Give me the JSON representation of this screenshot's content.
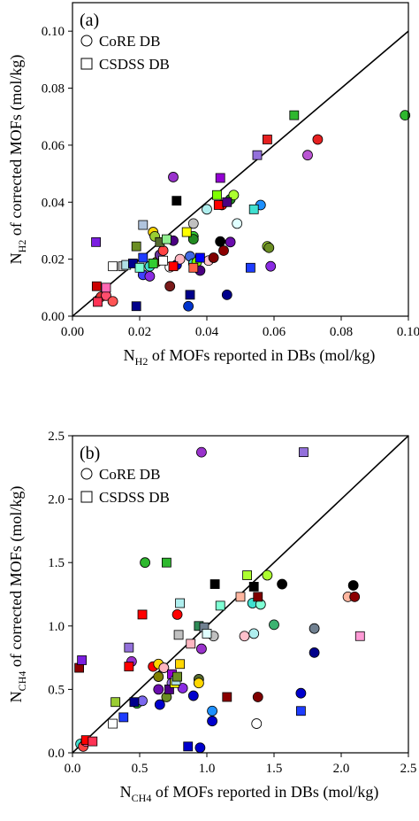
{
  "chart_data": [
    {
      "type": "scatter",
      "panel_label": "(a)",
      "xlabel": {
        "main": "N",
        "sub": "H2",
        "rest": " of MOFs reported in DBs (mol/kg)"
      },
      "ylabel": {
        "main": "N",
        "sub": "H2",
        "rest": " of corrected MOFs (mol/kg)"
      },
      "xlim": [
        0,
        0.1
      ],
      "ylim": [
        0,
        0.11
      ],
      "xticks": [
        "0.00",
        "0.02",
        "0.04",
        "0.06",
        "0.08",
        "0.10"
      ],
      "xtick_values": [
        0,
        0.02,
        0.04,
        0.06,
        0.08,
        0.1
      ],
      "yticks": [
        "0.00",
        "0.02",
        "0.04",
        "0.06",
        "0.08",
        "0.10"
      ],
      "ytick_values": [
        0,
        0.02,
        0.04,
        0.06,
        0.08,
        0.1
      ],
      "diagonal": [
        [
          0,
          0
        ],
        [
          0.11,
          0.11
        ]
      ],
      "legend": [
        {
          "label": "CoRE DB",
          "marker": "circle"
        },
        {
          "label": "CSDSS DB",
          "marker": "square"
        }
      ],
      "series": [
        {
          "name": "CoRE DB",
          "marker": "circle",
          "points": [
            {
              "x": 0.0085,
              "y": 0.0068,
              "color": "#e03333"
            },
            {
              "x": 0.01,
              "y": 0.0072,
              "color": "#ff4d6d"
            },
            {
              "x": 0.012,
              "y": 0.0052,
              "color": "#ff5555"
            },
            {
              "x": 0.021,
              "y": 0.0145,
              "color": "#4040ff"
            },
            {
              "x": 0.023,
              "y": 0.014,
              "color": "#8a2be2"
            },
            {
              "x": 0.023,
              "y": 0.0175,
              "color": "#40e0d0"
            },
            {
              "x": 0.024,
              "y": 0.0295,
              "color": "#ffd700"
            },
            {
              "x": 0.0245,
              "y": 0.028,
              "color": "#9acd32"
            },
            {
              "x": 0.025,
              "y": 0.019,
              "color": "#808000"
            },
            {
              "x": 0.026,
              "y": 0.0215,
              "color": "#663399"
            },
            {
              "x": 0.027,
              "y": 0.023,
              "color": "#ff4444"
            },
            {
              "x": 0.029,
              "y": 0.0172,
              "color": "#ffffff"
            },
            {
              "x": 0.029,
              "y": 0.0105,
              "color": "#7a1a1a"
            },
            {
              "x": 0.03,
              "y": 0.0265,
              "color": "#4b0082"
            },
            {
              "x": 0.03,
              "y": 0.0488,
              "color": "#9932cc"
            },
            {
              "x": 0.031,
              "y": 0.018,
              "color": "#0000cd"
            },
            {
              "x": 0.032,
              "y": 0.02,
              "color": "#ffb6c1"
            },
            {
              "x": 0.0345,
              "y": 0.0035,
              "color": "#0033cc"
            },
            {
              "x": 0.035,
              "y": 0.021,
              "color": "#4169e1"
            },
            {
              "x": 0.036,
              "y": 0.028,
              "color": "#32cd32"
            },
            {
              "x": 0.036,
              "y": 0.027,
              "color": "#228b22"
            },
            {
              "x": 0.036,
              "y": 0.0325,
              "color": "#c0c0c0"
            },
            {
              "x": 0.036,
              "y": 0.0185,
              "color": "#40e0d0"
            },
            {
              "x": 0.037,
              "y": 0.019,
              "color": "#7fff00"
            },
            {
              "x": 0.038,
              "y": 0.016,
              "color": "#4b0082"
            },
            {
              "x": 0.04,
              "y": 0.0375,
              "color": "#afeeee"
            },
            {
              "x": 0.0405,
              "y": 0.0195,
              "color": "#ffc0cb"
            },
            {
              "x": 0.042,
              "y": 0.0205,
              "color": "#800000"
            },
            {
              "x": 0.044,
              "y": 0.0262,
              "color": "#000000"
            },
            {
              "x": 0.0445,
              "y": 0.039,
              "color": "#ff0000"
            },
            {
              "x": 0.045,
              "y": 0.023,
              "color": "#8b0000"
            },
            {
              "x": 0.046,
              "y": 0.0075,
              "color": "#00008b"
            },
            {
              "x": 0.047,
              "y": 0.026,
              "color": "#6a0dad"
            },
            {
              "x": 0.047,
              "y": 0.041,
              "color": "#228b22"
            },
            {
              "x": 0.048,
              "y": 0.0425,
              "color": "#adff2f"
            },
            {
              "x": 0.049,
              "y": 0.0325,
              "color": "#e0ffff"
            },
            {
              "x": 0.056,
              "y": 0.039,
              "color": "#1e90ff"
            },
            {
              "x": 0.058,
              "y": 0.0245,
              "color": "#9acd32"
            },
            {
              "x": 0.0585,
              "y": 0.024,
              "color": "#6b8e23"
            },
            {
              "x": 0.059,
              "y": 0.0175,
              "color": "#8a2be2"
            },
            {
              "x": 0.07,
              "y": 0.0565,
              "color": "#ba55d3"
            },
            {
              "x": 0.073,
              "y": 0.062,
              "color": "#e62020"
            },
            {
              "x": 0.099,
              "y": 0.0705,
              "color": "#2eb82e"
            }
          ]
        },
        {
          "name": "CSDSS DB",
          "marker": "square",
          "points": [
            {
              "x": 0.007,
              "y": 0.026,
              "color": "#7b1fe0"
            },
            {
              "x": 0.0072,
              "y": 0.0105,
              "color": "#cc0000"
            },
            {
              "x": 0.0075,
              "y": 0.005,
              "color": "#ff3355"
            },
            {
              "x": 0.01,
              "y": 0.01,
              "color": "#ff69b4"
            },
            {
              "x": 0.012,
              "y": 0.0175,
              "color": "#ffffff"
            },
            {
              "x": 0.015,
              "y": 0.0175,
              "color": "#c0c0c0"
            },
            {
              "x": 0.016,
              "y": 0.018,
              "color": "#b0e0e6"
            },
            {
              "x": 0.018,
              "y": 0.0185,
              "color": "#00008b"
            },
            {
              "x": 0.019,
              "y": 0.0245,
              "color": "#6b8e23"
            },
            {
              "x": 0.019,
              "y": 0.0035,
              "color": "#00008b"
            },
            {
              "x": 0.02,
              "y": 0.017,
              "color": "#7fffd4"
            },
            {
              "x": 0.021,
              "y": 0.032,
              "color": "#b0c4de"
            },
            {
              "x": 0.021,
              "y": 0.0205,
              "color": "#1e3cff"
            },
            {
              "x": 0.024,
              "y": 0.0185,
              "color": "#32cd32"
            },
            {
              "x": 0.026,
              "y": 0.026,
              "color": "#556b2f"
            },
            {
              "x": 0.027,
              "y": 0.0195,
              "color": "#ffffff"
            },
            {
              "x": 0.028,
              "y": 0.027,
              "color": "#90ee90"
            },
            {
              "x": 0.03,
              "y": 0.0175,
              "color": "#ff0000"
            },
            {
              "x": 0.031,
              "y": 0.0405,
              "color": "#000000"
            },
            {
              "x": 0.034,
              "y": 0.0295,
              "color": "#ffff00"
            },
            {
              "x": 0.035,
              "y": 0.0075,
              "color": "#00008b"
            },
            {
              "x": 0.036,
              "y": 0.017,
              "color": "#ff6347"
            },
            {
              "x": 0.038,
              "y": 0.0205,
              "color": "#0000ff"
            },
            {
              "x": 0.043,
              "y": 0.0425,
              "color": "#7fff00"
            },
            {
              "x": 0.0435,
              "y": 0.039,
              "color": "#ff0000"
            },
            {
              "x": 0.044,
              "y": 0.0485,
              "color": "#9400d3"
            },
            {
              "x": 0.046,
              "y": 0.04,
              "color": "#4b0082"
            },
            {
              "x": 0.053,
              "y": 0.017,
              "color": "#1e3cff"
            },
            {
              "x": 0.054,
              "y": 0.0375,
              "color": "#40e0d0"
            },
            {
              "x": 0.055,
              "y": 0.0565,
              "color": "#9370db"
            },
            {
              "x": 0.058,
              "y": 0.062,
              "color": "#e62020"
            },
            {
              "x": 0.066,
              "y": 0.0705,
              "color": "#2eb82e"
            }
          ]
        }
      ]
    },
    {
      "type": "scatter",
      "panel_label": "(b)",
      "xlabel": {
        "main": "N",
        "sub": "CH4",
        "rest": " of MOFs reported in DBs (mol/kg)"
      },
      "ylabel": {
        "main": "N",
        "sub": "CH4",
        "rest": " of corrected MOFs (mol/kg)"
      },
      "xlim": [
        0,
        2.5
      ],
      "ylim": [
        0,
        2.5
      ],
      "xticks": [
        "0.0",
        "0.5",
        "1.0",
        "1.5",
        "2.0",
        "2.5"
      ],
      "xtick_values": [
        0,
        0.5,
        1.0,
        1.5,
        2.0,
        2.5
      ],
      "yticks": [
        "0.0",
        "0.5",
        "1.0",
        "1.5",
        "2.0",
        "2.5"
      ],
      "ytick_values": [
        0,
        0.5,
        1.0,
        1.5,
        2.0,
        2.5
      ],
      "diagonal": [
        [
          0,
          0
        ],
        [
          2.5,
          2.5
        ]
      ],
      "legend": [
        {
          "label": "CoRE DB",
          "marker": "circle"
        },
        {
          "label": "CSDSS DB",
          "marker": "square"
        }
      ],
      "series": [
        {
          "name": "CoRE DB",
          "marker": "circle",
          "points": [
            {
              "x": 0.06,
              "y": 0.07,
              "color": "#40e0d0"
            },
            {
              "x": 0.08,
              "y": 0.05,
              "color": "#ff4444"
            },
            {
              "x": 0.1,
              "y": 0.09,
              "color": "#ff69b4"
            },
            {
              "x": 0.44,
              "y": 0.72,
              "color": "#9932cc"
            },
            {
              "x": 0.48,
              "y": 0.39,
              "color": "#32cd32"
            },
            {
              "x": 0.52,
              "y": 0.41,
              "color": "#7b68ee"
            },
            {
              "x": 0.54,
              "y": 1.5,
              "color": "#2eb82e"
            },
            {
              "x": 0.6,
              "y": 0.68,
              "color": "#ff0000"
            },
            {
              "x": 0.64,
              "y": 0.7,
              "color": "#ffd700"
            },
            {
              "x": 0.64,
              "y": 0.6,
              "color": "#808000"
            },
            {
              "x": 0.64,
              "y": 0.5,
              "color": "#6a0dad"
            },
            {
              "x": 0.65,
              "y": 0.38,
              "color": "#0000cd"
            },
            {
              "x": 0.68,
              "y": 0.67,
              "color": "#ffb6c1"
            },
            {
              "x": 0.7,
              "y": 0.44,
              "color": "#6b8e23"
            },
            {
              "x": 0.74,
              "y": 0.55,
              "color": "#9370db"
            },
            {
              "x": 0.78,
              "y": 1.09,
              "color": "#ff0000"
            },
            {
              "x": 0.82,
              "y": 0.51,
              "color": "#8a2be2"
            },
            {
              "x": 0.9,
              "y": 0.45,
              "color": "#0000cd"
            },
            {
              "x": 0.94,
              "y": 0.58,
              "color": "#556b2f"
            },
            {
              "x": 0.94,
              "y": 0.55,
              "color": "#ffd700"
            },
            {
              "x": 0.95,
              "y": 0.04,
              "color": "#0000cd"
            },
            {
              "x": 0.96,
              "y": 0.82,
              "color": "#9932cc"
            },
            {
              "x": 0.96,
              "y": 2.37,
              "color": "#9932cc"
            },
            {
              "x": 1.04,
              "y": 0.33,
              "color": "#1e90ff"
            },
            {
              "x": 1.04,
              "y": 0.25,
              "color": "#0000cd"
            },
            {
              "x": 1.05,
              "y": 0.92,
              "color": "#c0c0c0"
            },
            {
              "x": 1.28,
              "y": 0.92,
              "color": "#ffc0cb"
            },
            {
              "x": 1.34,
              "y": 1.18,
              "color": "#40e0d0"
            },
            {
              "x": 1.35,
              "y": 0.94,
              "color": "#afeeee"
            },
            {
              "x": 1.37,
              "y": 0.23,
              "color": "#ffffff"
            },
            {
              "x": 1.38,
              "y": 0.44,
              "color": "#800000"
            },
            {
              "x": 1.4,
              "y": 1.17,
              "color": "#7fffd4"
            },
            {
              "x": 1.45,
              "y": 1.4,
              "color": "#adff2f"
            },
            {
              "x": 1.5,
              "y": 1.01,
              "color": "#3cb371"
            },
            {
              "x": 1.56,
              "y": 1.33,
              "color": "#000000"
            },
            {
              "x": 1.7,
              "y": 0.47,
              "color": "#0000cd"
            },
            {
              "x": 1.8,
              "y": 0.98,
              "color": "#708090"
            },
            {
              "x": 1.8,
              "y": 0.79,
              "color": "#00008b"
            },
            {
              "x": 2.05,
              "y": 1.23,
              "color": "#ffb6a0"
            },
            {
              "x": 2.09,
              "y": 1.32,
              "color": "#000000"
            },
            {
              "x": 2.1,
              "y": 1.23,
              "color": "#8b0000"
            }
          ]
        },
        {
          "name": "CSDSS DB",
          "marker": "square",
          "points": [
            {
              "x": 0.05,
              "y": 0.67,
              "color": "#8b0000"
            },
            {
              "x": 0.07,
              "y": 0.73,
              "color": "#7b1fe0"
            },
            {
              "x": 0.1,
              "y": 0.1,
              "color": "#ff0000"
            },
            {
              "x": 0.15,
              "y": 0.09,
              "color": "#ff3355"
            },
            {
              "x": 0.3,
              "y": 0.23,
              "color": "#ffffff"
            },
            {
              "x": 0.32,
              "y": 0.4,
              "color": "#9acd32"
            },
            {
              "x": 0.38,
              "y": 0.28,
              "color": "#1e3cff"
            },
            {
              "x": 0.42,
              "y": 0.83,
              "color": "#9370db"
            },
            {
              "x": 0.42,
              "y": 0.68,
              "color": "#ff0000"
            },
            {
              "x": 0.46,
              "y": 0.4,
              "color": "#00008b"
            },
            {
              "x": 0.52,
              "y": 1.09,
              "color": "#ff0000"
            },
            {
              "x": 0.7,
              "y": 1.5,
              "color": "#2eb82e"
            },
            {
              "x": 0.72,
              "y": 0.5,
              "color": "#4b0082"
            },
            {
              "x": 0.74,
              "y": 0.62,
              "color": "#9400d3"
            },
            {
              "x": 0.76,
              "y": 0.55,
              "color": "#ffff00"
            },
            {
              "x": 0.77,
              "y": 0.57,
              "color": "#b0e0e6"
            },
            {
              "x": 0.78,
              "y": 0.6,
              "color": "#6b8e23"
            },
            {
              "x": 0.79,
              "y": 0.93,
              "color": "#c0c0c0"
            },
            {
              "x": 0.8,
              "y": 1.18,
              "color": "#afeeee"
            },
            {
              "x": 0.8,
              "y": 0.7,
              "color": "#ffd700"
            },
            {
              "x": 0.86,
              "y": 0.05,
              "color": "#0000cd"
            },
            {
              "x": 0.88,
              "y": 0.86,
              "color": "#ffb6c1"
            },
            {
              "x": 0.94,
              "y": 1.0,
              "color": "#2e8b57"
            },
            {
              "x": 0.98,
              "y": 0.99,
              "color": "#708090"
            },
            {
              "x": 1.0,
              "y": 0.94,
              "color": "#e0ffff"
            },
            {
              "x": 1.06,
              "y": 1.33,
              "color": "#000000"
            },
            {
              "x": 1.1,
              "y": 1.16,
              "color": "#7fffd4"
            },
            {
              "x": 1.15,
              "y": 0.44,
              "color": "#8b0000"
            },
            {
              "x": 1.25,
              "y": 1.23,
              "color": "#ffb6a0"
            },
            {
              "x": 1.3,
              "y": 1.4,
              "color": "#adff2f"
            },
            {
              "x": 1.35,
              "y": 1.31,
              "color": "#000000"
            },
            {
              "x": 1.38,
              "y": 1.23,
              "color": "#800000"
            },
            {
              "x": 1.7,
              "y": 0.33,
              "color": "#1e3cff"
            },
            {
              "x": 1.72,
              "y": 2.37,
              "color": "#9370db"
            },
            {
              "x": 2.14,
              "y": 0.92,
              "color": "#ff9ad5"
            }
          ]
        }
      ]
    }
  ]
}
